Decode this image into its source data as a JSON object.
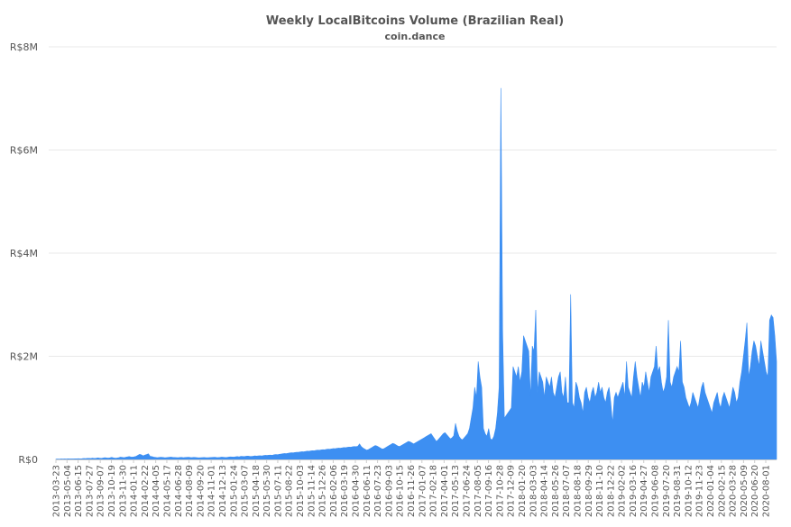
{
  "chart_data": {
    "type": "area",
    "title": "Weekly LocalBitcoins Volume (Brazilian Real)",
    "subtitle": "coin.dance",
    "y_ticks": [
      "R$0",
      "R$2M",
      "R$4M",
      "R$6M",
      "R$8M"
    ],
    "y_tick_values": [
      0,
      2000000,
      4000000,
      6000000,
      8000000
    ],
    "ylim": [
      0,
      8000000
    ],
    "x_ticks": [
      "2013-03-23",
      "2013-05-04",
      "2013-06-15",
      "2013-07-27",
      "2013-09-07",
      "2013-10-19",
      "2013-11-30",
      "2014-01-11",
      "2014-02-22",
      "2014-04-05",
      "2014-05-17",
      "2014-06-28",
      "2014-08-09",
      "2014-09-20",
      "2014-11-01",
      "2014-12-13",
      "2015-01-24",
      "2015-03-07",
      "2015-04-18",
      "2015-05-30",
      "2015-07-11",
      "2015-08-22",
      "2015-10-03",
      "2015-11-14",
      "2015-12-26",
      "2016-02-06",
      "2016-03-19",
      "2016-04-30",
      "2016-06-11",
      "2016-07-23",
      "2016-09-03",
      "2016-10-15",
      "2016-11-26",
      "2017-01-07",
      "2017-02-18",
      "2017-04-01",
      "2017-05-13",
      "2017-06-24",
      "2017-08-05",
      "2017-09-16",
      "2017-10-28",
      "2017-12-09",
      "2018-01-20",
      "2018-03-03",
      "2018-04-14",
      "2018-05-26",
      "2018-07-07",
      "2018-08-18",
      "2018-09-29",
      "2018-11-10",
      "2018-12-22",
      "2019-02-02",
      "2019-03-16",
      "2019-04-27",
      "2019-06-08",
      "2019-07-20",
      "2019-08-31",
      "2019-10-12",
      "2019-11-23",
      "2020-01-04",
      "2020-02-15",
      "2020-03-28",
      "2020-05-09",
      "2020-06-20",
      "2020-08-01"
    ],
    "series": [
      {
        "color": "#3d8ff2",
        "values": [
          5000,
          8000,
          6000,
          9000,
          7000,
          10000,
          8000,
          12000,
          9000,
          11000,
          10000,
          13000,
          12000,
          15000,
          11000,
          14000,
          18000,
          16000,
          20000,
          22000,
          18000,
          25000,
          20000,
          23000,
          30000,
          25000,
          22000,
          28000,
          35000,
          30000,
          26000,
          32000,
          40000,
          30000,
          25000,
          28000,
          35000,
          45000,
          40000,
          35000,
          42000,
          50000,
          55000,
          48000,
          45000,
          52000,
          60000,
          80000,
          100000,
          90000,
          70000,
          85000,
          95000,
          110000,
          60000,
          55000,
          45000,
          40000,
          35000,
          38000,
          42000,
          40000,
          36000,
          34000,
          38000,
          42000,
          45000,
          40000,
          38000,
          36000,
          34000,
          38000,
          40000,
          35000,
          38000,
          40000,
          42000,
          38000,
          36000,
          40000,
          38000,
          35000,
          32000,
          34000,
          36000,
          38000,
          35000,
          33000,
          36000,
          38000,
          40000,
          42000,
          38000,
          36000,
          40000,
          45000,
          42000,
          38000,
          40000,
          45000,
          50000,
          48000,
          45000,
          52000,
          55000,
          50000,
          60000,
          58000,
          55000,
          62000,
          65000,
          60000,
          58000,
          62000,
          68000,
          65000,
          70000,
          72000,
          68000,
          75000,
          80000,
          78000,
          82000,
          85000,
          80000,
          90000,
          95000,
          92000,
          100000,
          105000,
          110000,
          115000,
          112000,
          120000,
          125000,
          130000,
          128000,
          135000,
          140000,
          138000,
          145000,
          150000,
          148000,
          155000,
          160000,
          158000,
          165000,
          170000,
          168000,
          175000,
          180000,
          178000,
          185000,
          190000,
          188000,
          195000,
          200000,
          198000,
          205000,
          210000,
          208000,
          215000,
          220000,
          218000,
          225000,
          230000,
          228000,
          235000,
          240000,
          238000,
          245000,
          250000,
          248000,
          255000,
          300000,
          250000,
          220000,
          200000,
          180000,
          190000,
          210000,
          230000,
          250000,
          270000,
          260000,
          240000,
          220000,
          200000,
          210000,
          230000,
          250000,
          270000,
          290000,
          310000,
          300000,
          280000,
          260000,
          250000,
          270000,
          290000,
          310000,
          330000,
          350000,
          340000,
          320000,
          300000,
          320000,
          340000,
          360000,
          380000,
          400000,
          420000,
          440000,
          460000,
          480000,
          500000,
          450000,
          400000,
          350000,
          380000,
          420000,
          460000,
          500000,
          520000,
          480000,
          440000,
          400000,
          420000,
          460000,
          700000,
          550000,
          450000,
          400000,
          380000,
          420000,
          460000,
          500000,
          600000,
          800000,
          1000000,
          1400000,
          1200000,
          1900000,
          1600000,
          1400000,
          600000,
          500000,
          450000,
          600000,
          400000,
          380000,
          450000,
          600000,
          900000,
          1400000,
          7200000,
          2500000,
          800000,
          850000,
          900000,
          950000,
          1000000,
          1800000,
          1700000,
          1600000,
          1800000,
          1500000,
          1700000,
          2400000,
          2300000,
          2200000,
          2100000,
          1200000,
          2200000,
          2100000,
          2900000,
          1300000,
          1700000,
          1600000,
          1500000,
          1200000,
          1600000,
          1500000,
          1400000,
          1600000,
          1300000,
          1200000,
          1400000,
          1600000,
          1700000,
          1300000,
          1200000,
          1600000,
          1100000,
          1100000,
          3200000,
          1100000,
          1000000,
          1500000,
          1400000,
          1200000,
          1100000,
          900000,
          1300000,
          1400000,
          1200000,
          1100000,
          1300000,
          1400000,
          1200000,
          1300000,
          1500000,
          1300000,
          1400000,
          1200000,
          1100000,
          1300000,
          1400000,
          1100000,
          700000,
          1200000,
          1300000,
          1200000,
          1300000,
          1400000,
          1500000,
          1200000,
          1900000,
          1400000,
          1300000,
          1200000,
          1600000,
          1900000,
          1600000,
          1400000,
          1200000,
          1500000,
          1400000,
          1700000,
          1500000,
          1300000,
          1600000,
          1700000,
          1800000,
          2200000,
          1700000,
          1800000,
          1500000,
          1300000,
          1400000,
          1600000,
          2700000,
          1500000,
          1400000,
          1600000,
          1700000,
          1800000,
          1700000,
          2300000,
          1500000,
          1400000,
          1200000,
          1100000,
          1000000,
          1100000,
          1300000,
          1200000,
          1100000,
          1000000,
          1200000,
          1400000,
          1500000,
          1300000,
          1200000,
          1100000,
          1000000,
          900000,
          1100000,
          1200000,
          1300000,
          1100000,
          1000000,
          1200000,
          1300000,
          1200000,
          1100000,
          1000000,
          1200000,
          1400000,
          1300000,
          1100000,
          1200000,
          1500000,
          1700000,
          2000000,
          2300000,
          2650000,
          1600000,
          1800000,
          2100000,
          2300000,
          2200000,
          2000000,
          1800000,
          2300000,
          2100000,
          1900000,
          1700000,
          1600000,
          2700000,
          2800000,
          2750000,
          2400000,
          1900000
        ]
      }
    ]
  }
}
